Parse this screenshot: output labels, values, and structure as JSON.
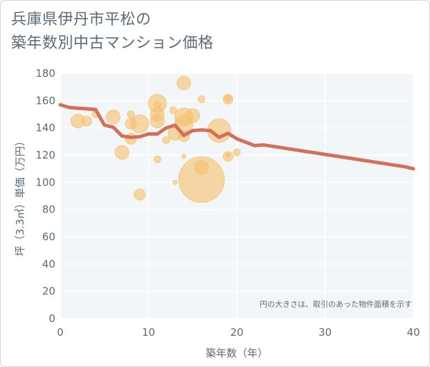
{
  "title_lines": [
    "兵庫県伊丹市平松の",
    "築年数別中古マンション価格"
  ],
  "colors": {
    "plot_background": "#f3f6f8",
    "grid": "#ffffff",
    "bubble": "#f5c06a",
    "line": "#d4705a",
    "text": "#5a6b78"
  },
  "chart_data": {
    "type": "scatter",
    "title": "兵庫県伊丹市平松の築年数別中古マンション価格",
    "xlabel": "築年数（年）",
    "ylabel": "坪（3.3㎡）単価（万円）",
    "xlim": [
      0,
      40
    ],
    "ylim": [
      0,
      180
    ],
    "x_ticks": [
      0,
      10,
      20,
      30,
      40
    ],
    "y_ticks": [
      0,
      20,
      40,
      60,
      80,
      100,
      120,
      140,
      160,
      180
    ],
    "grid": true,
    "annotation": "円の大きさは、取引のあった物件面積を示す",
    "bubbles": [
      {
        "x": 2,
        "y": 145,
        "size": 20
      },
      {
        "x": 3,
        "y": 145,
        "size": 14
      },
      {
        "x": 4,
        "y": 150,
        "size": 10
      },
      {
        "x": 6,
        "y": 148,
        "size": 20
      },
      {
        "x": 7,
        "y": 122,
        "size": 20
      },
      {
        "x": 8,
        "y": 150,
        "size": 10
      },
      {
        "x": 8,
        "y": 143,
        "size": 16
      },
      {
        "x": 8,
        "y": 132,
        "size": 16
      },
      {
        "x": 9,
        "y": 143,
        "size": 26
      },
      {
        "x": 9,
        "y": 91,
        "size": 16
      },
      {
        "x": 11,
        "y": 158,
        "size": 26
      },
      {
        "x": 11,
        "y": 150,
        "size": 20
      },
      {
        "x": 11,
        "y": 145,
        "size": 20
      },
      {
        "x": 11,
        "y": 117,
        "size": 10
      },
      {
        "x": 11,
        "y": 157,
        "size": 10
      },
      {
        "x": 12,
        "y": 131,
        "size": 10
      },
      {
        "x": 12.8,
        "y": 153,
        "size": 10
      },
      {
        "x": 13,
        "y": 136,
        "size": 20
      },
      {
        "x": 13,
        "y": 100,
        "size": 6
      },
      {
        "x": 14,
        "y": 173,
        "size": 20
      },
      {
        "x": 14,
        "y": 148,
        "size": 26
      },
      {
        "x": 14,
        "y": 143,
        "size": 26
      },
      {
        "x": 14,
        "y": 134,
        "size": 16
      },
      {
        "x": 14,
        "y": 119,
        "size": 6
      },
      {
        "x": 15,
        "y": 149,
        "size": 20
      },
      {
        "x": 16,
        "y": 161,
        "size": 10
      },
      {
        "x": 16,
        "y": 111,
        "size": 20
      },
      {
        "x": 16,
        "y": 102,
        "size": 66
      },
      {
        "x": 18,
        "y": 138,
        "size": 34
      },
      {
        "x": 19,
        "y": 162,
        "size": 10
      },
      {
        "x": 19,
        "y": 161,
        "size": 14
      },
      {
        "x": 19,
        "y": 119,
        "size": 14
      },
      {
        "x": 19,
        "y": 120,
        "size": 6
      },
      {
        "x": 20,
        "y": 122,
        "size": 10
      }
    ],
    "series": [
      {
        "type": "line",
        "x": [
          0,
          1,
          2,
          3,
          4,
          5,
          6,
          7,
          8,
          9,
          10,
          11,
          12,
          13,
          14,
          15,
          16,
          17,
          18,
          19,
          20,
          21,
          22,
          23,
          24,
          25,
          26,
          27,
          28,
          29,
          30,
          31,
          32,
          33,
          34,
          35,
          36,
          37,
          38,
          39,
          40
        ],
        "y": [
          157,
          155,
          154.5,
          154,
          153.5,
          142,
          140.5,
          134,
          133,
          133.5,
          135.5,
          135.5,
          140,
          142,
          134.5,
          138,
          138.5,
          138,
          133,
          136,
          132,
          129.5,
          127,
          127.5,
          126.5,
          125.5,
          124.5,
          123.5,
          122.5,
          121.5,
          120.5,
          119.5,
          118.5,
          117.5,
          116.5,
          115.5,
          114.5,
          113.5,
          112.5,
          111.5,
          110
        ]
      }
    ]
  }
}
